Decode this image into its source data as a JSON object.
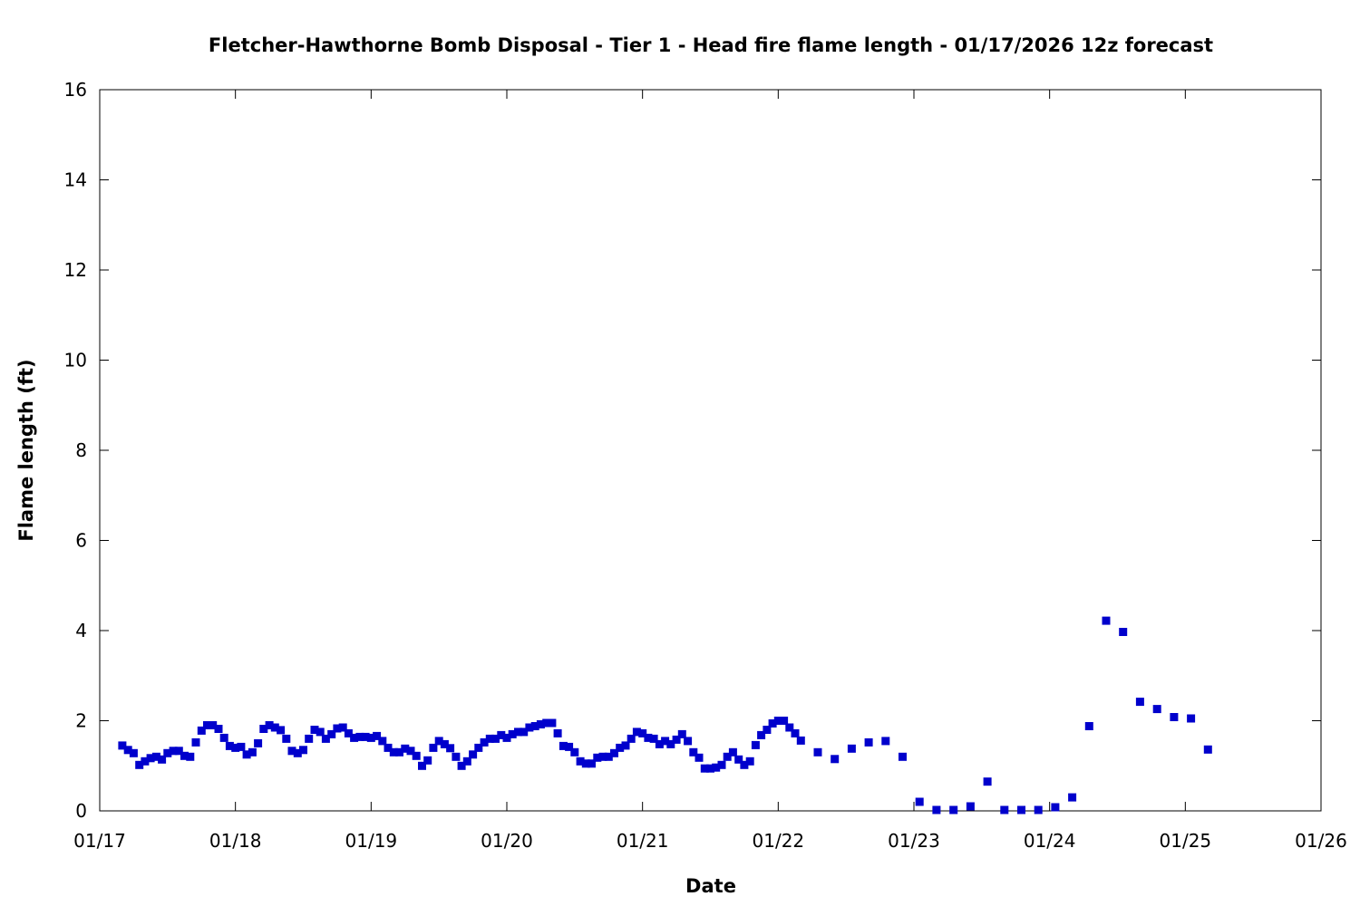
{
  "chart_data": {
    "type": "scatter",
    "title": "Fletcher-Hawthorne Bomb Disposal - Tier 1 - Head fire flame length - 01/17/2026 12z forecast",
    "xlabel": "Date",
    "ylabel": "Flame length (ft)",
    "x_axis_type": "date",
    "xlim": [
      "01/17 00:00",
      "01/26 00:00"
    ],
    "ylim": [
      0,
      16
    ],
    "xticks": [
      "01/17",
      "01/18",
      "01/19",
      "01/20",
      "01/21",
      "01/22",
      "01/23",
      "01/24",
      "01/25",
      "01/26"
    ],
    "yticks": [
      "0",
      "2",
      "4",
      "6",
      "8",
      "10",
      "12",
      "14",
      "16"
    ],
    "grid": false,
    "marker": "square",
    "marker_color": "#0000cc",
    "series": [
      {
        "x": [
          "01/17 04:00",
          "01/17 05:00",
          "01/17 06:00",
          "01/17 07:00",
          "01/17 08:00",
          "01/17 09:00",
          "01/17 10:00",
          "01/17 11:00",
          "01/17 12:00",
          "01/17 13:00",
          "01/17 14:00",
          "01/17 15:00",
          "01/17 16:00",
          "01/17 17:00",
          "01/17 18:00",
          "01/17 19:00",
          "01/17 20:00",
          "01/17 21:00",
          "01/17 22:00",
          "01/17 23:00",
          "01/18 00:00",
          "01/18 01:00",
          "01/18 02:00",
          "01/18 03:00",
          "01/18 04:00",
          "01/18 05:00",
          "01/18 06:00",
          "01/18 07:00",
          "01/18 08:00",
          "01/18 09:00",
          "01/18 10:00",
          "01/18 11:00",
          "01/18 12:00",
          "01/18 13:00",
          "01/18 14:00",
          "01/18 15:00",
          "01/18 16:00",
          "01/18 17:00",
          "01/18 18:00",
          "01/18 19:00",
          "01/18 20:00",
          "01/18 21:00",
          "01/18 22:00",
          "01/18 23:00",
          "01/19 00:00",
          "01/19 01:00",
          "01/19 02:00",
          "01/19 03:00",
          "01/19 04:00",
          "01/19 05:00",
          "01/19 06:00",
          "01/19 07:00",
          "01/19 08:00",
          "01/19 09:00",
          "01/19 10:00",
          "01/19 11:00",
          "01/19 12:00",
          "01/19 13:00",
          "01/19 14:00",
          "01/19 15:00",
          "01/19 16:00",
          "01/19 17:00",
          "01/19 18:00",
          "01/19 19:00",
          "01/19 20:00",
          "01/19 21:00",
          "01/19 22:00",
          "01/19 23:00",
          "01/20 00:00",
          "01/20 01:00",
          "01/20 02:00",
          "01/20 03:00",
          "01/20 04:00",
          "01/20 05:00",
          "01/20 06:00",
          "01/20 07:00",
          "01/20 08:00",
          "01/20 09:00",
          "01/20 10:00",
          "01/20 11:00",
          "01/20 12:00",
          "01/20 13:00",
          "01/20 14:00",
          "01/20 15:00",
          "01/20 16:00",
          "01/20 17:00",
          "01/20 18:00",
          "01/20 19:00",
          "01/20 20:00",
          "01/20 21:00",
          "01/20 22:00",
          "01/20 23:00",
          "01/21 00:00",
          "01/21 01:00",
          "01/21 02:00",
          "01/21 03:00",
          "01/21 04:00",
          "01/21 05:00",
          "01/21 06:00",
          "01/21 07:00",
          "01/21 08:00",
          "01/21 09:00",
          "01/21 10:00",
          "01/21 11:00",
          "01/21 12:00",
          "01/21 13:00",
          "01/21 14:00",
          "01/21 15:00",
          "01/21 16:00",
          "01/21 17:00",
          "01/21 18:00",
          "01/21 19:00",
          "01/21 20:00",
          "01/21 21:00",
          "01/21 22:00",
          "01/21 23:00",
          "01/22 00:00",
          "01/22 01:00",
          "01/22 02:00",
          "01/22 03:00",
          "01/22 04:00",
          "01/22 07:00",
          "01/22 10:00",
          "01/22 13:00",
          "01/22 16:00",
          "01/22 19:00",
          "01/22 22:00",
          "01/23 01:00",
          "01/23 04:00",
          "01/23 07:00",
          "01/23 10:00",
          "01/23 13:00",
          "01/23 16:00",
          "01/23 19:00",
          "01/23 22:00",
          "01/24 01:00",
          "01/24 04:00",
          "01/24 07:00",
          "01/24 10:00",
          "01/24 13:00",
          "01/24 16:00",
          "01/24 19:00",
          "01/24 22:00",
          "01/25 01:00",
          "01/25 04:00"
        ],
        "y": [
          1.45,
          1.35,
          1.28,
          1.02,
          1.1,
          1.17,
          1.2,
          1.14,
          1.28,
          1.33,
          1.33,
          1.22,
          1.2,
          1.52,
          1.78,
          1.9,
          1.9,
          1.82,
          1.62,
          1.44,
          1.4,
          1.42,
          1.25,
          1.3,
          1.5,
          1.82,
          1.9,
          1.85,
          1.79,
          1.6,
          1.33,
          1.28,
          1.35,
          1.6,
          1.8,
          1.75,
          1.6,
          1.7,
          1.83,
          1.85,
          1.72,
          1.62,
          1.64,
          1.64,
          1.62,
          1.66,
          1.55,
          1.4,
          1.3,
          1.3,
          1.38,
          1.33,
          1.22,
          1.0,
          1.12,
          1.4,
          1.55,
          1.48,
          1.39,
          1.2,
          1.0,
          1.1,
          1.25,
          1.4,
          1.52,
          1.6,
          1.6,
          1.68,
          1.62,
          1.7,
          1.75,
          1.75,
          1.85,
          1.88,
          1.92,
          1.95,
          1.95,
          1.72,
          1.44,
          1.42,
          1.3,
          1.1,
          1.05,
          1.05,
          1.18,
          1.2,
          1.2,
          1.28,
          1.4,
          1.45,
          1.6,
          1.75,
          1.72,
          1.62,
          1.6,
          1.48,
          1.55,
          1.48,
          1.58,
          1.7,
          1.55,
          1.3,
          1.18,
          0.94,
          0.94,
          0.96,
          1.02,
          1.2,
          1.3,
          1.14,
          1.02,
          1.1,
          1.46,
          1.68,
          1.8,
          1.94,
          2.0,
          2.0,
          1.85,
          1.72,
          1.56,
          1.3,
          1.15,
          1.38,
          1.52,
          1.55,
          1.2,
          0.2,
          0.02,
          0.02,
          0.1,
          0.65,
          0.02,
          0.02,
          0.02,
          0.08,
          0.3,
          1.88,
          4.22,
          3.97,
          2.42,
          2.26,
          2.08,
          2.05,
          1.36
        ]
      }
    ]
  }
}
